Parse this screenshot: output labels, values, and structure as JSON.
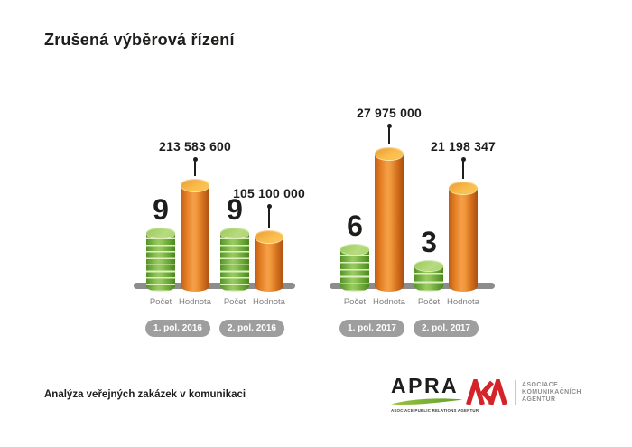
{
  "page": {
    "title": "Zrušená výběrová řízení",
    "footer": "Analýza veřejných zakázek v komunikaci"
  },
  "chart_data": {
    "type": "bar",
    "title": "Zrušená výběrová řízení",
    "description": "Cancelled tenders: count (Počet, green coin stacks) and value in CZK (Hodnota, orange cylinders) per half-year",
    "series_labels": [
      "Počet",
      "Hodnota"
    ],
    "groups": [
      {
        "period": "1. pol. 2016",
        "pocet": 9,
        "hodnota": 213583600,
        "hodnota_label": "213 583 600"
      },
      {
        "period": "2. pol. 2016",
        "pocet": 9,
        "hodnota": 105100000,
        "hodnota_label": "105 100 000"
      },
      {
        "period": "1. pol. 2017",
        "pocet": 6,
        "hodnota": 27975000,
        "hodnota_label": "27 975 000"
      },
      {
        "period": "2. pol. 2017",
        "pocet": 3,
        "hodnota": 21198347,
        "hodnota_label": "21 198 347"
      }
    ],
    "legend_position": "none",
    "grid": false
  },
  "colors": {
    "count_green": "#7ab545",
    "value_orange": "#f09a3f",
    "pill_gray": "#9e9e9e",
    "baseline_gray": "#8c8c8c",
    "text_dark": "#1d1d1b",
    "label_gray": "#7f7f7f",
    "aka_red": "#d5232a",
    "apra_green": "#76b82a"
  },
  "logos": {
    "apra": {
      "wordmark": "APRA",
      "caption": "ASOCIACE PUBLIC RELATIONS AGENTUR"
    },
    "aka": {
      "monogram": "AKA",
      "caption_lines": [
        "ASOCIACE",
        "KOMUNIKAČNÍCH",
        "AGENTUR"
      ]
    }
  }
}
